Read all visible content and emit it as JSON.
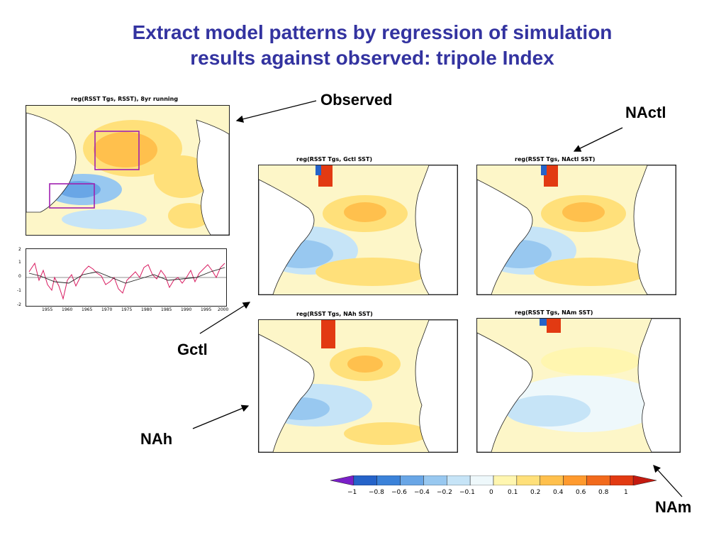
{
  "title_line1": "Extract model patterns by regression of simulation",
  "title_line2": "results against observed: tripole Index",
  "labels": {
    "observed": "Observed",
    "nactl": "NActl",
    "gctl": "Gctl",
    "nah": "NAh",
    "nam": "NAm"
  },
  "maps": {
    "observed": "reg(RSST Tgs, RSST), 8yr running",
    "gctl": "reg(RSST Tgs, Gctl SST)",
    "nactl": "reg(RSST Tgs, NActl SST)",
    "nah": "reg(RSST Tgs, NAh SST)",
    "nam": "reg(RSST Tgs, NAm SST)"
  },
  "colorbar": {
    "ticks": [
      "−1",
      "−0.8",
      "−0.6",
      "−0.4",
      "−0.2",
      "−0.1",
      "0",
      "0.1",
      "0.2",
      "0.4",
      "0.6",
      "0.8",
      "1"
    ],
    "colors": [
      "#7a1fc8",
      "#2563c9",
      "#3b82d9",
      "#69a6e6",
      "#98c8f0",
      "#c6e4f7",
      "#eef8fb",
      "#fff6b0",
      "#ffe07a",
      "#ffc04d",
      "#ff9a2e",
      "#f26a1c",
      "#e23a12",
      "#c41a10"
    ]
  },
  "timeseries": {
    "x_ticks": [
      "1955",
      "1960",
      "1965",
      "1970",
      "1975",
      "1980",
      "1985",
      "1990",
      "1995",
      "2000"
    ],
    "y_ticks": [
      "2",
      "1",
      "0",
      "-1",
      "-2"
    ]
  }
}
